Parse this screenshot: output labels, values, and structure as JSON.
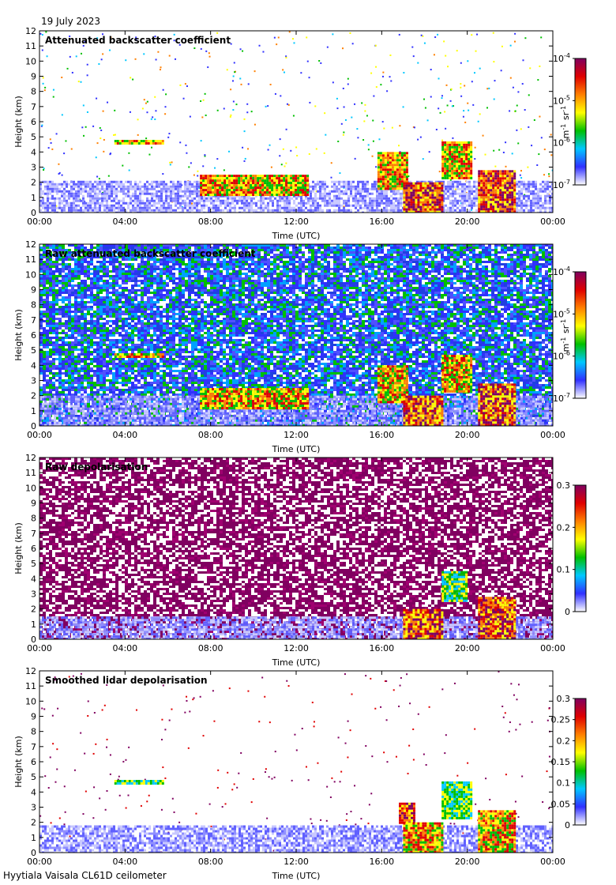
{
  "header": {
    "date": "19 July 2023"
  },
  "footer": {
    "instrument": "Hyytiala Vaisala CL61D ceilometer"
  },
  "chart_data": [
    {
      "type": "heatmap",
      "title": "Attenuated backscatter coefficient",
      "xlabel": "Time (UTC)",
      "ylabel": "Height (km)",
      "xticks": [
        "00:00",
        "04:00",
        "08:00",
        "12:00",
        "16:00",
        "20:00",
        "00:00"
      ],
      "yticks": [
        0,
        1,
        2,
        3,
        4,
        5,
        6,
        7,
        8,
        9,
        10,
        11,
        12
      ],
      "xlim_hours": [
        0,
        24
      ],
      "ylim_km": [
        0,
        12
      ],
      "colorbar": {
        "scale": "log",
        "ticks": [
          "10-7",
          "10-6",
          "10-5",
          "10-4"
        ],
        "unit": "m-1 sr-1"
      },
      "colormap": [
        "#ffffff",
        "#3030ff",
        "#00c8ff",
        "#00c000",
        "#ffff00",
        "#ff8000",
        "#e00000",
        "#800060"
      ],
      "noise": "sparse",
      "features": [
        {
          "label": "boundary-layer aerosol",
          "t_start": 0,
          "t_end": 24,
          "h_bottom": 0,
          "h_top": 2.1,
          "level": "low"
        },
        {
          "label": "elevated layer",
          "t_start": 3.5,
          "t_end": 5.8,
          "h_bottom": 4.6,
          "h_top": 4.8,
          "level": "high"
        },
        {
          "label": "cloud base",
          "t_start": 7.5,
          "t_end": 12.5,
          "h_bottom": 1.2,
          "h_top": 2.5,
          "level": "high"
        },
        {
          "label": "cloud",
          "t_start": 15.8,
          "t_end": 17.2,
          "h_bottom": 1.5,
          "h_top": 4.0,
          "level": "high"
        },
        {
          "label": "precipitation",
          "t_start": 17.0,
          "t_end": 18.8,
          "h_bottom": 0,
          "h_top": 2.0,
          "level": "max"
        },
        {
          "label": "cloud",
          "t_start": 18.8,
          "t_end": 20.2,
          "h_bottom": 2.3,
          "h_top": 4.7,
          "level": "high"
        },
        {
          "label": "precipitation",
          "t_start": 20.5,
          "t_end": 22.2,
          "h_bottom": 0,
          "h_top": 2.8,
          "level": "max"
        }
      ]
    },
    {
      "type": "heatmap",
      "title": "Raw attenuated backscatter coefficient",
      "xlabel": "Time (UTC)",
      "ylabel": "Height (km)",
      "xticks": [
        "00:00",
        "04:00",
        "08:00",
        "12:00",
        "16:00",
        "20:00",
        "00:00"
      ],
      "yticks": [
        0,
        1,
        2,
        3,
        4,
        5,
        6,
        7,
        8,
        9,
        10,
        11,
        12
      ],
      "xlim_hours": [
        0,
        24
      ],
      "ylim_km": [
        0,
        12
      ],
      "colorbar": {
        "scale": "log",
        "ticks": [
          "10-7",
          "10-6",
          "10-5",
          "10-4"
        ],
        "unit": "m-1 sr-1"
      },
      "colormap": [
        "#ffffff",
        "#3030ff",
        "#00c8ff",
        "#00c000",
        "#ffff00",
        "#ff8000",
        "#e00000",
        "#800060"
      ],
      "noise": "dense-blue",
      "features": [
        {
          "label": "boundary-layer aerosol",
          "t_start": 0,
          "t_end": 24,
          "h_bottom": 0,
          "h_top": 2.0,
          "level": "low"
        },
        {
          "label": "elevated layer",
          "t_start": 3.5,
          "t_end": 5.8,
          "h_bottom": 4.6,
          "h_top": 4.8,
          "level": "high"
        },
        {
          "label": "cloud base",
          "t_start": 7.5,
          "t_end": 12.5,
          "h_bottom": 1.2,
          "h_top": 2.5,
          "level": "high"
        },
        {
          "label": "cloud",
          "t_start": 15.8,
          "t_end": 17.2,
          "h_bottom": 1.5,
          "h_top": 4.0,
          "level": "high"
        },
        {
          "label": "precipitation",
          "t_start": 17.0,
          "t_end": 18.8,
          "h_bottom": 0,
          "h_top": 2.0,
          "level": "max"
        },
        {
          "label": "cloud",
          "t_start": 18.8,
          "t_end": 20.2,
          "h_bottom": 2.3,
          "h_top": 4.7,
          "level": "high"
        },
        {
          "label": "precipitation",
          "t_start": 20.5,
          "t_end": 22.2,
          "h_bottom": 0,
          "h_top": 2.8,
          "level": "max"
        }
      ]
    },
    {
      "type": "heatmap",
      "title": "Raw depolarisation",
      "xlabel": "Time (UTC)",
      "ylabel": "Height (km)",
      "xticks": [
        "00:00",
        "04:00",
        "08:00",
        "12:00",
        "16:00",
        "20:00",
        "00:00"
      ],
      "yticks": [
        0,
        1,
        2,
        3,
        4,
        5,
        6,
        7,
        8,
        9,
        10,
        11,
        12
      ],
      "xlim_hours": [
        0,
        24
      ],
      "ylim_km": [
        0,
        12
      ],
      "colorbar": {
        "scale": "linear",
        "ticks": [
          "0",
          "0.1",
          "0.2",
          "0.3"
        ]
      },
      "colormap": [
        "#ffffff",
        "#3030ff",
        "#00c8ff",
        "#00c000",
        "#ffff00",
        "#ff8000",
        "#e00000",
        "#800060"
      ],
      "noise": "dense-purple",
      "features": [
        {
          "label": "boundary-layer aerosol",
          "t_start": 0,
          "t_end": 24,
          "h_bottom": 0,
          "h_top": 1.5,
          "level": "low"
        },
        {
          "label": "precipitation",
          "t_start": 17.0,
          "t_end": 18.8,
          "h_bottom": 0,
          "h_top": 2.0,
          "level": "max"
        },
        {
          "label": "cloud",
          "t_start": 18.8,
          "t_end": 20.0,
          "h_bottom": 2.5,
          "h_top": 4.5,
          "level": "mid"
        },
        {
          "label": "precipitation",
          "t_start": 20.5,
          "t_end": 22.2,
          "h_bottom": 0,
          "h_top": 2.8,
          "level": "max"
        }
      ]
    },
    {
      "type": "heatmap",
      "title": "Smoothed lidar depolarisation",
      "xlabel": "Time (UTC)",
      "ylabel": "Height (km)",
      "xticks": [
        "00:00",
        "04:00",
        "08:00",
        "12:00",
        "16:00",
        "20:00",
        "00:00"
      ],
      "yticks": [
        0,
        1,
        2,
        3,
        4,
        5,
        6,
        7,
        8,
        9,
        10,
        11,
        12
      ],
      "xlim_hours": [
        0,
        24
      ],
      "ylim_km": [
        0,
        12
      ],
      "colorbar": {
        "scale": "linear",
        "ticks": [
          "0",
          "0.05",
          "0.1",
          "0.15",
          "0.2",
          "0.25",
          "0.3"
        ]
      },
      "colormap": [
        "#ffffff",
        "#3030ff",
        "#00c8ff",
        "#00c000",
        "#ffff00",
        "#ff8000",
        "#e00000",
        "#800060"
      ],
      "noise": "sparse-purple",
      "features": [
        {
          "label": "boundary-layer aerosol",
          "t_start": 0,
          "t_end": 24,
          "h_bottom": 0,
          "h_top": 1.8,
          "level": "low"
        },
        {
          "label": "elevated layer",
          "t_start": 3.5,
          "t_end": 5.8,
          "h_bottom": 4.6,
          "h_top": 4.8,
          "level": "mid"
        },
        {
          "label": "cloud",
          "t_start": 16.8,
          "t_end": 17.5,
          "h_bottom": 2.0,
          "h_top": 3.3,
          "level": "max"
        },
        {
          "label": "precipitation",
          "t_start": 17.0,
          "t_end": 18.8,
          "h_bottom": 0,
          "h_top": 2.0,
          "level": "high"
        },
        {
          "label": "cloud",
          "t_start": 18.8,
          "t_end": 20.2,
          "h_bottom": 2.3,
          "h_top": 4.7,
          "level": "mid"
        },
        {
          "label": "precipitation",
          "t_start": 20.5,
          "t_end": 22.2,
          "h_bottom": 0,
          "h_top": 2.8,
          "level": "high"
        }
      ]
    }
  ]
}
